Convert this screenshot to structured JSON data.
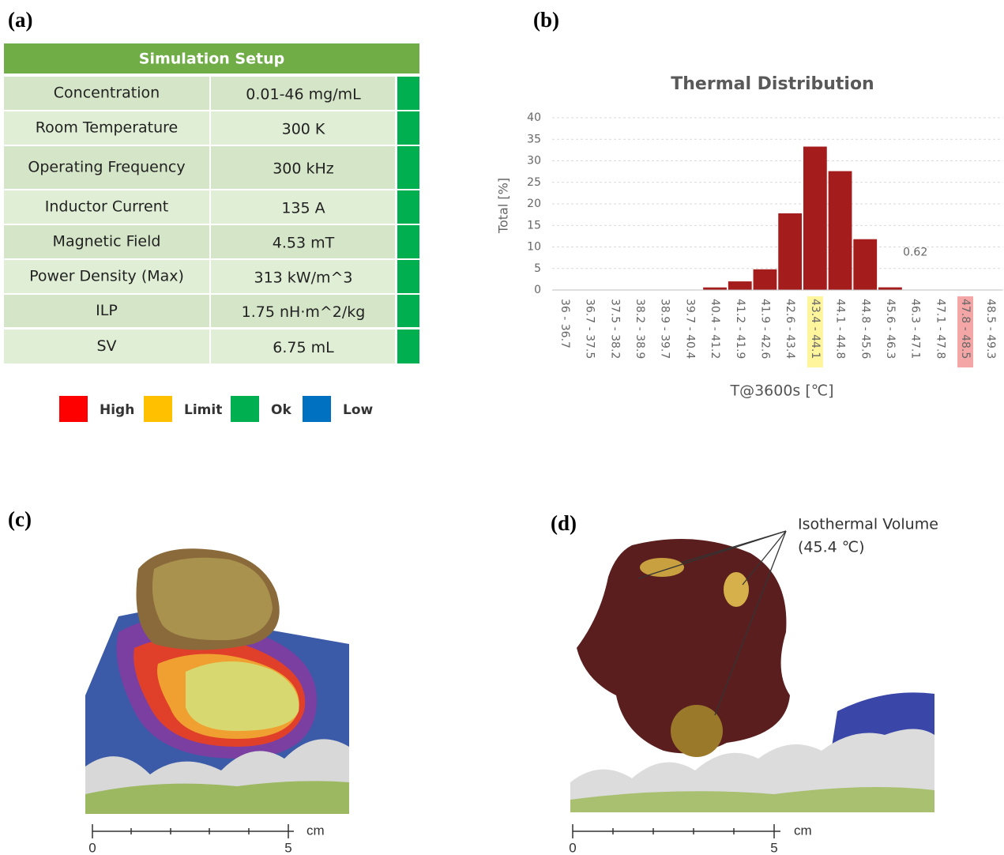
{
  "panels": {
    "a": "(a)",
    "b": "(b)",
    "c": "(c)",
    "d": "(d)"
  },
  "table": {
    "title": "Simulation Setup",
    "rows": [
      [
        "Concentration",
        "0.01-46 mg/mL"
      ],
      [
        "Room Temperature",
        "300 K"
      ],
      [
        "Operating Frequency",
        "300 kHz"
      ],
      [
        "Inductor Current",
        "135 A"
      ],
      [
        "Magnetic Field",
        "4.53 mT"
      ],
      [
        "Power Density (Max)",
        "313 kW/m^3"
      ],
      [
        "ILP",
        "1.75 nH·m^2/kg"
      ],
      [
        "SV",
        "6.75 mL"
      ]
    ],
    "status_colors": [
      "#00b050",
      "#00b050",
      "#00b050",
      "#00b050",
      "#00b050",
      "#00b050",
      "#00b050",
      "#00b050"
    ]
  },
  "legend": [
    {
      "label": "High",
      "color": "#ff0000"
    },
    {
      "label": "Limit",
      "color": "#ffc000"
    },
    {
      "label": "Ok",
      "color": "#00b050"
    },
    {
      "label": "Low",
      "color": "#0070c0"
    }
  ],
  "chart_data": {
    "type": "bar",
    "title": "Thermal Distribution",
    "x_label": "T@3600s [℃]",
    "y_label": "Total [%]",
    "categories": [
      "36 - 36.7",
      "36.7 - 37.5",
      "37.5 - 38.2",
      "38.2 - 38.9",
      "38.9 - 39.7",
      "39.7 - 40.4",
      "40.4 - 41.2",
      "41.2 - 41.9",
      "41.9 - 42.6",
      "42.6 - 43.4",
      "43.4 - 44.1",
      "44.1 - 44.8",
      "44.8 - 45.6",
      "45.6 - 46.3",
      "46.3 - 47.1",
      "47.1 - 47.8",
      "47.8 - 48.5",
      "48.5 - 49.3"
    ],
    "values": [
      0,
      0,
      0,
      0,
      0,
      0,
      0.6,
      2,
      4.8,
      17.8,
      33.3,
      27.6,
      11.8,
      0.62,
      0,
      0,
      0,
      0
    ],
    "value_labels": [
      null,
      null,
      null,
      null,
      null,
      null,
      null,
      null,
      null,
      null,
      null,
      null,
      null,
      "0.62",
      null,
      null,
      null,
      null
    ],
    "label_backgrounds": [
      null,
      null,
      null,
      null,
      null,
      null,
      null,
      null,
      null,
      null,
      "#fff59d",
      null,
      null,
      null,
      null,
      null,
      "#f4a6a6",
      null
    ],
    "color": "#a51c1c",
    "ylim": [
      0,
      40
    ],
    "yticks": [
      0,
      5,
      10,
      15,
      20,
      25,
      30,
      35,
      40
    ],
    "grid": true
  },
  "figure_c": {
    "scale_bar": {
      "labels": [
        "0",
        "5"
      ],
      "unit": "cm"
    }
  },
  "figure_d": {
    "annotation": [
      "Isothermal Volume",
      "(45.4 ℃)"
    ],
    "scale_bar": {
      "labels": [
        "0",
        "5"
      ],
      "unit": "cm"
    }
  }
}
